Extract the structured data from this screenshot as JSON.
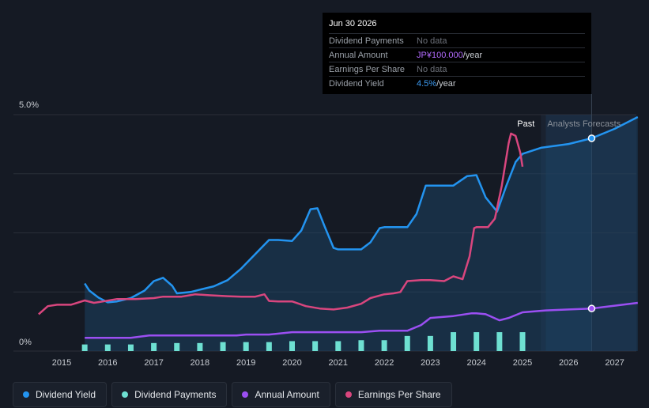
{
  "tooltip": {
    "date": "Jun 30 2026",
    "rows": [
      {
        "label": "Dividend Payments",
        "value": "No data",
        "unit": ""
      },
      {
        "label": "Annual Amount",
        "value": "JP¥100.000",
        "unit": "/year"
      },
      {
        "label": "Earnings Per Share",
        "value": "No data",
        "unit": ""
      },
      {
        "label": "Dividend Yield",
        "value": "4.5%",
        "unit": "/year"
      }
    ]
  },
  "legend": [
    {
      "label": "Dividend Yield",
      "color": "#2394f0"
    },
    {
      "label": "Dividend Payments",
      "color": "#6ee0d2"
    },
    {
      "label": "Annual Amount",
      "color": "#9b4ff2"
    },
    {
      "label": "Earnings Per Share",
      "color": "#d9467e"
    }
  ],
  "chart_data": {
    "type": "line",
    "title": "",
    "y_tick_labels": [
      "5.0%",
      "0%"
    ],
    "ylim": [
      0,
      5.0
    ],
    "xlim": [
      2014.5,
      2027.5
    ],
    "x_ticks": [
      2015,
      2016,
      2017,
      2018,
      2019,
      2020,
      2021,
      2022,
      2023,
      2024,
      2025,
      2026,
      2027
    ],
    "past_label": "Past",
    "forecast_label": "Analysts Forecasts",
    "forecast_start": 2025.4,
    "hover_x": 2026.5,
    "series": [
      {
        "name": "Dividend Yield",
        "color": "#2394f0",
        "points": [
          [
            2015.5,
            1.43
          ],
          [
            2015.6,
            1.28
          ],
          [
            2015.8,
            1.13
          ],
          [
            2016.0,
            1.03
          ],
          [
            2016.2,
            1.05
          ],
          [
            2016.5,
            1.12
          ],
          [
            2016.8,
            1.28
          ],
          [
            2017.0,
            1.48
          ],
          [
            2017.2,
            1.55
          ],
          [
            2017.4,
            1.38
          ],
          [
            2017.5,
            1.22
          ],
          [
            2017.8,
            1.25
          ],
          [
            2018.0,
            1.3
          ],
          [
            2018.3,
            1.37
          ],
          [
            2018.6,
            1.5
          ],
          [
            2018.9,
            1.75
          ],
          [
            2019.2,
            2.05
          ],
          [
            2019.5,
            2.35
          ],
          [
            2019.7,
            2.35
          ],
          [
            2020.0,
            2.33
          ],
          [
            2020.2,
            2.55
          ],
          [
            2020.4,
            3.0
          ],
          [
            2020.55,
            3.02
          ],
          [
            2020.7,
            2.65
          ],
          [
            2020.9,
            2.18
          ],
          [
            2021.0,
            2.15
          ],
          [
            2021.2,
            2.15
          ],
          [
            2021.5,
            2.15
          ],
          [
            2021.7,
            2.3
          ],
          [
            2021.9,
            2.6
          ],
          [
            2022.0,
            2.62
          ],
          [
            2022.2,
            2.62
          ],
          [
            2022.5,
            2.62
          ],
          [
            2022.7,
            2.9
          ],
          [
            2022.9,
            3.5
          ],
          [
            2023.0,
            3.5
          ],
          [
            2023.5,
            3.5
          ],
          [
            2023.8,
            3.7
          ],
          [
            2024.0,
            3.72
          ],
          [
            2024.2,
            3.25
          ],
          [
            2024.45,
            2.95
          ],
          [
            2024.65,
            3.5
          ],
          [
            2024.85,
            4.0
          ],
          [
            2025.0,
            4.17
          ],
          [
            2025.4,
            4.3
          ],
          [
            2026.0,
            4.38
          ],
          [
            2026.5,
            4.5
          ],
          [
            2027.0,
            4.7
          ],
          [
            2027.5,
            4.95
          ]
        ]
      },
      {
        "name": "Annual Amount",
        "color": "#9b4ff2",
        "points": [
          [
            2015.5,
            0.28
          ],
          [
            2016.0,
            0.28
          ],
          [
            2016.5,
            0.28
          ],
          [
            2016.9,
            0.33
          ],
          [
            2017.5,
            0.33
          ],
          [
            2018.0,
            0.33
          ],
          [
            2018.8,
            0.33
          ],
          [
            2019.0,
            0.35
          ],
          [
            2019.5,
            0.35
          ],
          [
            2020.0,
            0.4
          ],
          [
            2020.5,
            0.4
          ],
          [
            2021.0,
            0.4
          ],
          [
            2021.5,
            0.4
          ],
          [
            2021.9,
            0.43
          ],
          [
            2022.5,
            0.43
          ],
          [
            2022.8,
            0.55
          ],
          [
            2023.0,
            0.7
          ],
          [
            2023.5,
            0.74
          ],
          [
            2023.9,
            0.8
          ],
          [
            2024.0,
            0.8
          ],
          [
            2024.2,
            0.78
          ],
          [
            2024.5,
            0.65
          ],
          [
            2024.7,
            0.7
          ],
          [
            2025.0,
            0.82
          ],
          [
            2025.5,
            0.86
          ],
          [
            2026.0,
            0.88
          ],
          [
            2026.5,
            0.9
          ],
          [
            2027.0,
            0.96
          ],
          [
            2027.5,
            1.02
          ]
        ]
      },
      {
        "name": "Earnings Per Share",
        "color": "#d9467e",
        "points": [
          [
            2014.5,
            0.78
          ],
          [
            2014.7,
            0.95
          ],
          [
            2014.9,
            0.98
          ],
          [
            2015.2,
            0.98
          ],
          [
            2015.5,
            1.07
          ],
          [
            2015.7,
            1.02
          ],
          [
            2015.9,
            1.05
          ],
          [
            2016.2,
            1.1
          ],
          [
            2016.6,
            1.1
          ],
          [
            2017.0,
            1.12
          ],
          [
            2017.2,
            1.15
          ],
          [
            2017.6,
            1.15
          ],
          [
            2017.9,
            1.2
          ],
          [
            2018.2,
            1.18
          ],
          [
            2018.6,
            1.16
          ],
          [
            2018.9,
            1.15
          ],
          [
            2019.2,
            1.15
          ],
          [
            2019.4,
            1.2
          ],
          [
            2019.5,
            1.06
          ],
          [
            2019.7,
            1.05
          ],
          [
            2020.0,
            1.05
          ],
          [
            2020.3,
            0.95
          ],
          [
            2020.6,
            0.9
          ],
          [
            2020.9,
            0.88
          ],
          [
            2021.2,
            0.92
          ],
          [
            2021.5,
            1.0
          ],
          [
            2021.7,
            1.12
          ],
          [
            2022.0,
            1.2
          ],
          [
            2022.2,
            1.22
          ],
          [
            2022.35,
            1.25
          ],
          [
            2022.5,
            1.48
          ],
          [
            2022.8,
            1.5
          ],
          [
            2023.0,
            1.5
          ],
          [
            2023.3,
            1.48
          ],
          [
            2023.5,
            1.58
          ],
          [
            2023.7,
            1.52
          ],
          [
            2023.85,
            2.0
          ],
          [
            2023.95,
            2.6
          ],
          [
            2024.0,
            2.62
          ],
          [
            2024.25,
            2.62
          ],
          [
            2024.4,
            2.8
          ],
          [
            2024.55,
            3.5
          ],
          [
            2024.7,
            4.4
          ],
          [
            2024.75,
            4.6
          ],
          [
            2024.85,
            4.55
          ],
          [
            2024.95,
            4.2
          ],
          [
            2025.0,
            3.9
          ]
        ]
      },
      {
        "name": "Dividend Payments",
        "color": "#6ee0d2",
        "type": "bar",
        "x": [
          2015.5,
          2016.0,
          2016.5,
          2017.0,
          2017.5,
          2018.0,
          2018.5,
          2019.0,
          2019.5,
          2020.0,
          2020.5,
          2021.0,
          2021.5,
          2022.0,
          2022.5,
          2023.0,
          2023.5,
          2024.0,
          2024.5,
          2025.0
        ],
        "values": [
          0.14,
          0.14,
          0.14,
          0.17,
          0.17,
          0.17,
          0.19,
          0.19,
          0.19,
          0.21,
          0.21,
          0.21,
          0.23,
          0.23,
          0.32,
          0.32,
          0.4,
          0.4,
          0.4,
          0.4
        ]
      }
    ]
  }
}
